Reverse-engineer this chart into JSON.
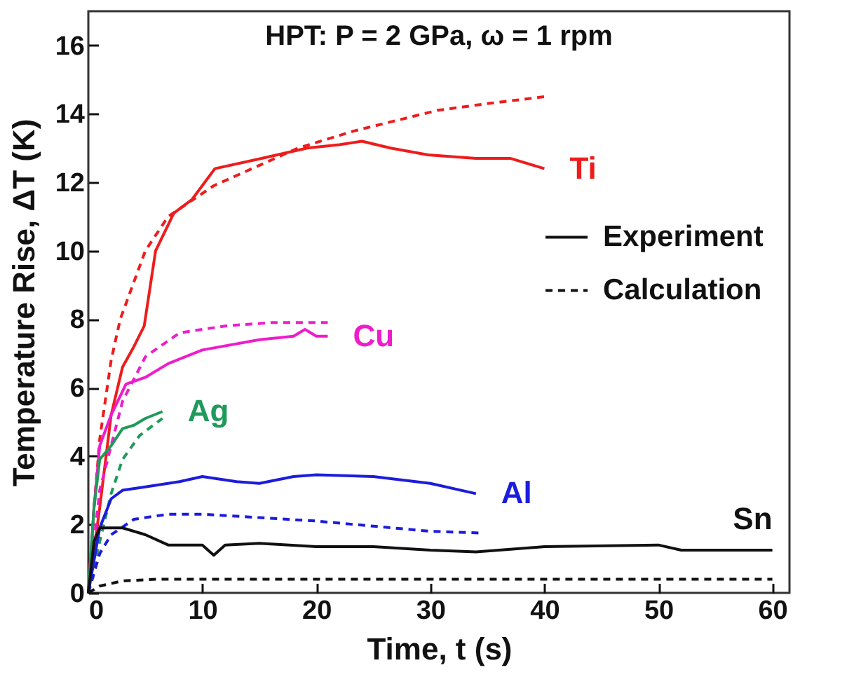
{
  "chart_data": {
    "type": "line",
    "title": "HPT: P = 2 GPa, ω = 1 rpm",
    "xlabel": "Time, t (s)",
    "ylabel": "Temperature Rise, ΔT (K)",
    "xlim": [
      0,
      61.5
    ],
    "xticks": [
      0,
      10,
      20,
      30,
      40,
      50,
      60
    ],
    "ylim": [
      0,
      17
    ],
    "yticks": [
      0,
      2,
      4,
      6,
      8,
      10,
      12,
      14,
      16
    ],
    "grid": false,
    "legend": "right",
    "marker": "none",
    "series": [
      {
        "color": "#ee1c1c",
        "line_style": "solid",
        "x": [
          0,
          1,
          2,
          3,
          4,
          4.9,
          5.9,
          7.5,
          9.1,
          11.1,
          15.2,
          19.2,
          22,
          24,
          26.5,
          29.8,
          34,
          37,
          40
        ],
        "values": [
          0,
          2.5,
          5.2,
          6.6,
          7.2,
          7.8,
          10,
          11.1,
          11.5,
          12.4,
          12.7,
          13,
          13.1,
          13.2,
          13,
          12.8,
          12.7,
          12.7,
          12.4
        ]
      },
      {
        "color": "#ee1c1c",
        "line_style": "dashed",
        "x": [
          0,
          0.5,
          1,
          2,
          2.8,
          5,
          7,
          11,
          18.4,
          23.3,
          30.6,
          35,
          40
        ],
        "values": [
          0,
          2.5,
          4.5,
          6.8,
          8,
          10,
          11,
          11.9,
          13,
          13.5,
          14.1,
          14.3,
          14.5
        ]
      },
      {
        "color": "#ee1ccc",
        "line_style": "solid",
        "x": [
          0,
          0.5,
          1,
          2,
          3.3,
          5,
          7,
          10,
          15,
          18,
          19,
          20,
          21
        ],
        "values": [
          0,
          2.5,
          4.3,
          5.2,
          6.1,
          6.3,
          6.7,
          7.1,
          7.4,
          7.5,
          7.7,
          7.5,
          7.5
        ]
      },
      {
        "color": "#ee1ccc",
        "line_style": "dashed",
        "x": [
          0,
          0.5,
          1,
          2,
          3,
          5,
          8,
          12,
          16,
          21
        ],
        "values": [
          0,
          1.5,
          3,
          4.3,
          5.6,
          6.9,
          7.6,
          7.8,
          7.9,
          7.9
        ]
      },
      {
        "color": "#1f9a5a",
        "line_style": "solid",
        "x": [
          0,
          0.5,
          1,
          2,
          3,
          4,
          5,
          6.5
        ],
        "values": [
          0,
          2.5,
          3.9,
          4.3,
          4.8,
          4.9,
          5.1,
          5.3
        ]
      },
      {
        "color": "#1f9a5a",
        "line_style": "dashed",
        "x": [
          0,
          1,
          2,
          3,
          4.5,
          6.5
        ],
        "values": [
          0,
          1.5,
          2.9,
          3.9,
          4.6,
          5.1
        ]
      },
      {
        "color": "#1c1cdd",
        "line_style": "solid",
        "x": [
          0,
          1,
          2,
          3,
          5,
          8,
          10,
          13,
          15,
          18,
          20,
          25,
          30,
          34
        ],
        "values": [
          0,
          1.9,
          2.75,
          3,
          3.1,
          3.25,
          3.4,
          3.25,
          3.2,
          3.4,
          3.45,
          3.4,
          3.2,
          2.9
        ]
      },
      {
        "color": "#1c1cdd",
        "line_style": "dashed",
        "x": [
          0,
          1,
          2,
          4,
          7,
          10,
          15,
          20,
          25,
          30,
          34.5
        ],
        "values": [
          0,
          1.15,
          1.7,
          2.15,
          2.3,
          2.3,
          2.2,
          2.1,
          1.95,
          1.8,
          1.75
        ]
      },
      {
        "name": "Experiment",
        "color": "#111111",
        "line_style": "solid",
        "x": [
          0,
          0.5,
          1,
          3,
          5,
          7,
          10,
          11,
          12,
          15,
          20,
          25,
          30,
          34,
          40,
          50,
          52,
          60
        ],
        "values": [
          0,
          1.5,
          1.9,
          1.9,
          1.7,
          1.4,
          1.4,
          1.1,
          1.4,
          1.45,
          1.35,
          1.35,
          1.25,
          1.2,
          1.35,
          1.4,
          1.25,
          1.25
        ]
      },
      {
        "name": "Calculation",
        "color": "#111111",
        "line_style": "dashed",
        "x": [
          0,
          1,
          3,
          6,
          60
        ],
        "values": [
          0,
          0.2,
          0.35,
          0.4,
          0.4
        ]
      }
    ],
    "annotations": [
      "Ti",
      "Cu",
      "Ag",
      "Al",
      "Sn"
    ]
  }
}
